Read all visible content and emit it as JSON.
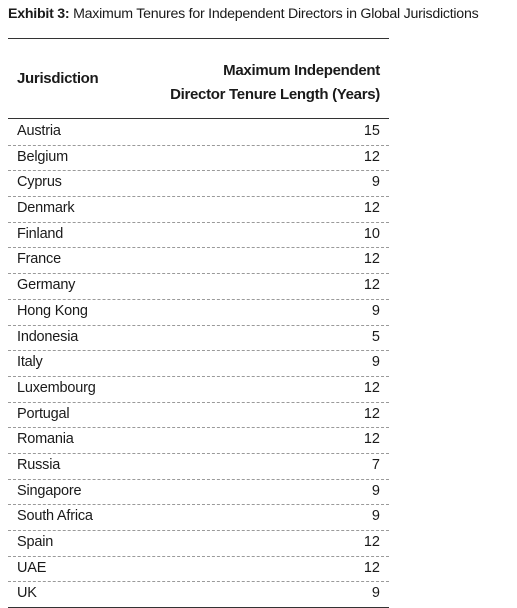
{
  "title": {
    "label": "Exhibit 3:",
    "text": "Maximum Tenures for Independent Directors in Global Jurisdictions"
  },
  "table": {
    "headers": {
      "jurisdiction": "Jurisdiction",
      "tenure_line1": "Maximum Independent",
      "tenure_line2": "Director Tenure Length (Years)"
    },
    "rows": [
      {
        "jurisdiction": "Austria",
        "years": "15"
      },
      {
        "jurisdiction": "Belgium",
        "years": "12"
      },
      {
        "jurisdiction": "Cyprus",
        "years": "9"
      },
      {
        "jurisdiction": "Denmark",
        "years": "12"
      },
      {
        "jurisdiction": "Finland",
        "years": "10"
      },
      {
        "jurisdiction": "France",
        "years": "12"
      },
      {
        "jurisdiction": "Germany",
        "years": "12"
      },
      {
        "jurisdiction": "Hong Kong",
        "years": "9"
      },
      {
        "jurisdiction": "Indonesia",
        "years": "5"
      },
      {
        "jurisdiction": "Italy",
        "years": "9"
      },
      {
        "jurisdiction": "Luxembourg",
        "years": "12"
      },
      {
        "jurisdiction": "Portugal",
        "years": "12"
      },
      {
        "jurisdiction": "Romania",
        "years": "12"
      },
      {
        "jurisdiction": "Russia",
        "years": "7"
      },
      {
        "jurisdiction": "Singapore",
        "years": "9"
      },
      {
        "jurisdiction": "South Africa",
        "years": "9"
      },
      {
        "jurisdiction": "Spain",
        "years": "12"
      },
      {
        "jurisdiction": "UAE",
        "years": "12"
      },
      {
        "jurisdiction": "UK",
        "years": "9"
      }
    ]
  }
}
